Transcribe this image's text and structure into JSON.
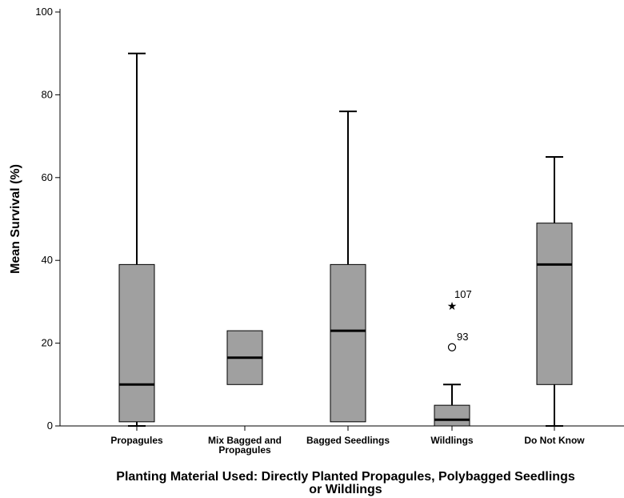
{
  "chart_data": {
    "type": "boxplot",
    "ylabel": "Mean Survival (%)",
    "xlabel_lines": [
      "Planting Material Used:  Directly Planted Propagules, Polybagged Seedlings",
      "or Wildlings"
    ],
    "ylim": [
      0,
      100
    ],
    "yticks": [
      0,
      20,
      40,
      60,
      80,
      100
    ],
    "ytick_labels": [
      "0",
      "20",
      "40",
      "60",
      "80",
      "100"
    ],
    "grid": false,
    "box_color": "#a0a0a0",
    "categories": [
      {
        "label_lines": [
          "Propagules"
        ],
        "min": 0,
        "q1": 1,
        "median": 10,
        "q3": 39,
        "max": 90,
        "outliers": []
      },
      {
        "label_lines": [
          "Mix Bagged and",
          "Propagules"
        ],
        "min": 10,
        "q1": 10,
        "median": 16.5,
        "q3": 23,
        "max": 23,
        "outliers": []
      },
      {
        "label_lines": [
          "Bagged Seedlings"
        ],
        "min": 1,
        "q1": 1,
        "median": 23,
        "q3": 39,
        "max": 76,
        "outliers": []
      },
      {
        "label_lines": [
          "Wildlings"
        ],
        "min": 0,
        "q1": 0,
        "median": 1.5,
        "q3": 5,
        "max": 10,
        "outliers": [
          {
            "value": 19,
            "label": "93",
            "marker": "circle"
          },
          {
            "value": 29,
            "label": "107",
            "marker": "star"
          }
        ]
      },
      {
        "label_lines": [
          "Do Not Know"
        ],
        "min": 0,
        "q1": 10,
        "median": 39,
        "q3": 49,
        "max": 65,
        "outliers": []
      }
    ]
  }
}
